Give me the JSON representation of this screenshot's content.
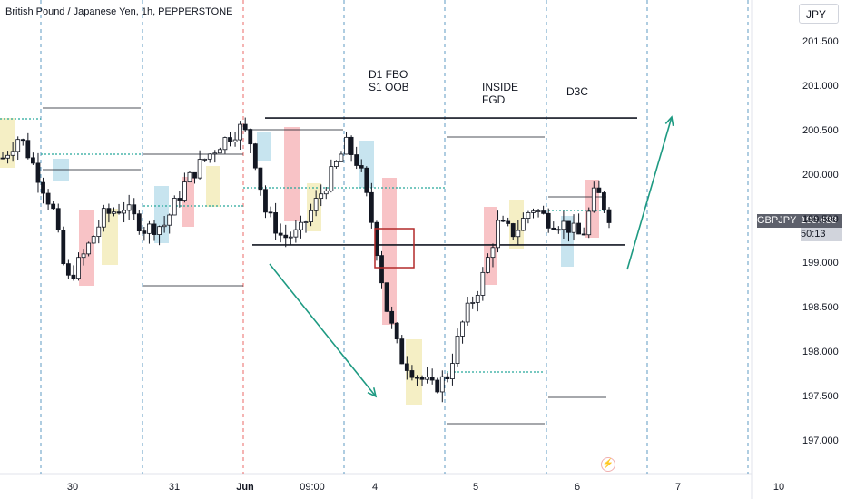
{
  "header": {
    "title": "British Pound / Japanese Yen, 1h, PEPPERSTONE"
  },
  "currency_button": "JPY",
  "last_price": {
    "symbol": "GBPJPY",
    "price": "199.488",
    "countdown": "50:13"
  },
  "annotations": [
    {
      "text": "D1 FBO\nS1 OOB"
    },
    {
      "text": "INSIDE\nFGD"
    },
    {
      "text": "D3C"
    }
  ],
  "icons": {
    "alert": "lightning-alert-icon"
  },
  "colors": {
    "up": "#26a69a",
    "down": "#ef5350",
    "candle": "#131722",
    "red_zone": "#f5a3a8",
    "blue_zone": "#a9d5e6",
    "yellow_zone": "#f0e6a6",
    "arrow": "#1e9a82",
    "box": "#b22a2a",
    "session_line": "#2a7ab0",
    "first_of_month": "#e53935"
  },
  "chart_data": {
    "type": "candlestick",
    "symbol": "GBPJPY",
    "timeframe": "1h",
    "yticks": [
      "201.500",
      "201.000",
      "200.500",
      "200.000",
      "199.500",
      "199.000",
      "198.500",
      "198.000",
      "197.500",
      "197.000"
    ],
    "xticks": [
      "30",
      "31",
      "Jun",
      "09:00",
      "4",
      "5",
      "6",
      "7",
      "10"
    ],
    "horizontal_levels": [
      200.65,
      199.22
    ],
    "price_anchors": [
      [
        0,
        200.2
      ],
      [
        10,
        200.45
      ],
      [
        20,
        200.05
      ],
      [
        30,
        199.6
      ],
      [
        38,
        198.8
      ],
      [
        48,
        199.1
      ],
      [
        60,
        199.55
      ],
      [
        72,
        199.65
      ],
      [
        84,
        199.4
      ],
      [
        96,
        199.45
      ],
      [
        108,
        199.9
      ],
      [
        118,
        200.15
      ],
      [
        130,
        200.38
      ],
      [
        142,
        200.55
      ],
      [
        148,
        200.35
      ],
      [
        156,
        199.6
      ],
      [
        166,
        199.3
      ],
      [
        176,
        199.35
      ],
      [
        186,
        199.7
      ],
      [
        196,
        200.05
      ],
      [
        204,
        200.35
      ],
      [
        212,
        200.1
      ],
      [
        220,
        199.4
      ],
      [
        228,
        198.5
      ],
      [
        236,
        197.95
      ],
      [
        246,
        197.75
      ],
      [
        256,
        197.6
      ],
      [
        264,
        197.75
      ],
      [
        274,
        198.4
      ],
      [
        284,
        198.8
      ],
      [
        294,
        199.45
      ],
      [
        304,
        199.35
      ],
      [
        314,
        199.65
      ],
      [
        324,
        199.5
      ],
      [
        334,
        199.45
      ],
      [
        344,
        199.3
      ],
      [
        352,
        199.85
      ],
      [
        360,
        199.55
      ]
    ]
  }
}
